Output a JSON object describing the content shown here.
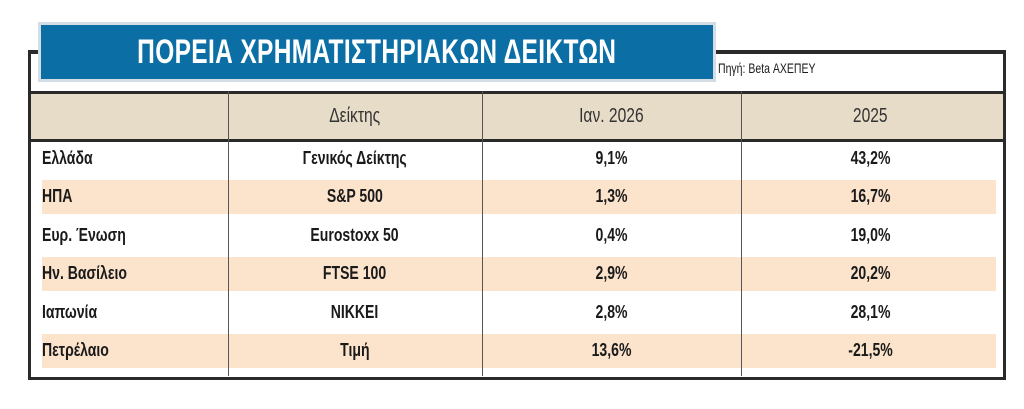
{
  "title": "ΠΟΡΕΙΑ ΧΡΗΜΑΤΙΣΤΗΡΙΑΚΩΝ ΔΕΙΚΤΩΝ",
  "source": "Πηγή: Beta ΑΧΕΠΕΥ",
  "colors": {
    "title_bg": "#0b6ea5",
    "header_bg": "#e7dcc8",
    "stripe": "#fbe3cc"
  },
  "columns": [
    "",
    "Δείκτης",
    "Ιαν. 2026",
    "2025"
  ],
  "rows": [
    [
      "Ελλάδα",
      "Γενικός Δείκτης",
      "9,1%",
      "43,2%"
    ],
    [
      "ΗΠΑ",
      "S&P 500",
      "1,3%",
      "16,7%"
    ],
    [
      "Ευρ. Ένωση",
      "Eurostoxx 50",
      "0,4%",
      "19,0%"
    ],
    [
      "Ην. Βασίλειο",
      "FTSE 100",
      "2,9%",
      "20,2%"
    ],
    [
      "Ιαπωνία",
      "NIKKEI",
      "2,8%",
      "28,1%"
    ],
    [
      "Πετρέλαιο",
      "Τιμή",
      "13,6%",
      "-21,5%"
    ]
  ]
}
